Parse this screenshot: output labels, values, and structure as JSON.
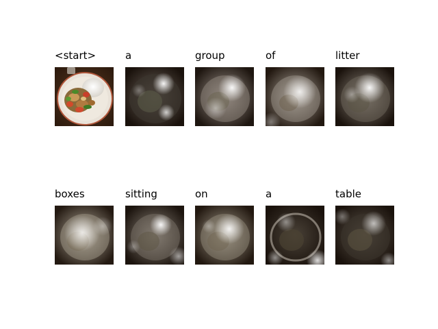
{
  "attention_grid": {
    "tokens": [
      "<start>",
      "a",
      "group",
      "of",
      "litter",
      "boxes",
      "sitting",
      "on",
      "a",
      "table"
    ]
  }
}
